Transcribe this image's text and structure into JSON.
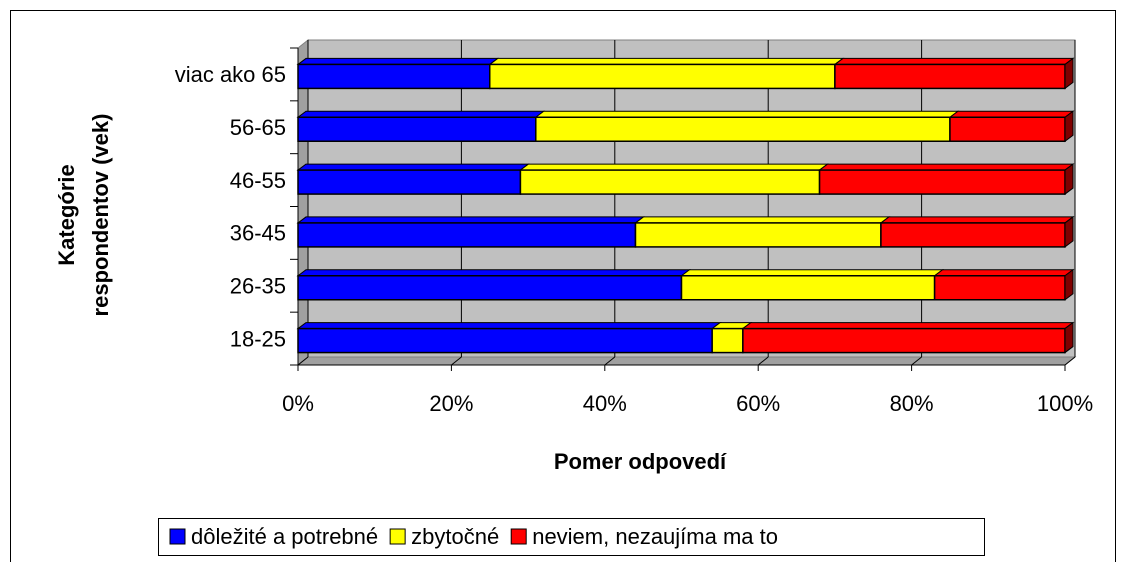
{
  "chart_data": {
    "type": "stacked_barh",
    "ylabel": [
      "Kategórie",
      "respondentov (vek)"
    ],
    "xlabel": "Pomer odpovedí",
    "categories": [
      "18-25",
      "26-35",
      "36-45",
      "46-55",
      "56-65",
      "viac ako 65"
    ],
    "series": [
      {
        "name": "dôležité a potrebné",
        "color": "#0000ff",
        "values": [
          54,
          50,
          44,
          29,
          31,
          25
        ]
      },
      {
        "name": "zbytočné",
        "color": "#ffff00",
        "values": [
          4,
          33,
          32,
          39,
          54,
          45
        ]
      },
      {
        "name": "neviem, nezaujíma ma to",
        "color": "#ff0000",
        "values": [
          42,
          17,
          24,
          32,
          15,
          30
        ]
      }
    ],
    "xlim": [
      0,
      100
    ],
    "xticks": [
      {
        "value": 0,
        "label": "0%"
      },
      {
        "value": 20,
        "label": "20%"
      },
      {
        "value": 40,
        "label": "40%"
      },
      {
        "value": 60,
        "label": "60%"
      },
      {
        "value": 80,
        "label": "80%"
      },
      {
        "value": 100,
        "label": "100%"
      }
    ],
    "grid": true,
    "legend": "bottom"
  }
}
